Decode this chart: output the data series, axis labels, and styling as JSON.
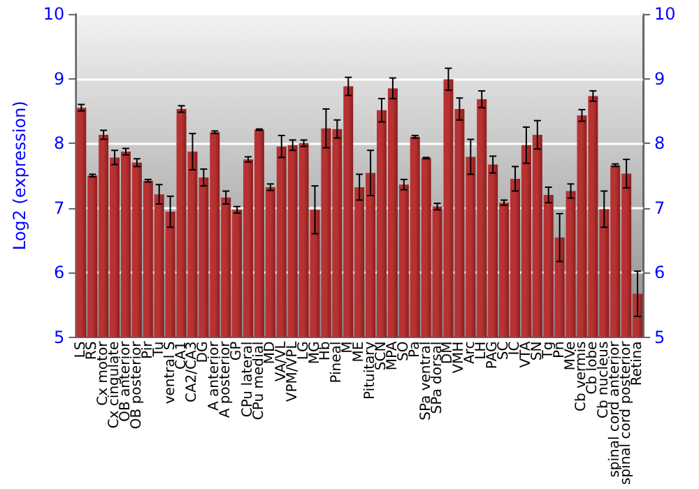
{
  "chart_data": {
    "type": "bar",
    "ylabel": "Log2 (expression)",
    "categories": [
      "LS",
      "RS",
      "Cx motor",
      "Cx cingulate",
      "OB anterior",
      "OB posterior",
      "Pir",
      "Tu",
      "ventral S",
      "CA1",
      "CA2/CA3",
      "DG",
      "A anterior",
      "A posterior",
      "GP",
      "CPu lateral",
      "CPu medial",
      "MD",
      "VA/VL",
      "VPM/VPL",
      "LG",
      "MG",
      "Hb",
      "Pineal",
      "M",
      "ME",
      "Pituitary",
      "SCN",
      "MPA",
      "SO",
      "Pa",
      "SPa ventral",
      "SPa dorsal",
      "DM",
      "VMH",
      "Arc",
      "LH",
      "PAG",
      "SC",
      "IC",
      "VTA",
      "SN",
      "Tg",
      "Pn",
      "MVe",
      "Cb vermis",
      "Cb lobe",
      "Cb nucleus",
      "spinal cord anterior",
      "spinal cord posterior",
      "Retina"
    ],
    "values": [
      8.55,
      7.5,
      8.13,
      7.78,
      7.87,
      7.7,
      7.42,
      7.21,
      6.94,
      8.53,
      7.87,
      7.47,
      8.17,
      7.16,
      6.97,
      7.75,
      8.21,
      7.32,
      7.95,
      7.97,
      8.0,
      6.97,
      8.23,
      8.22,
      8.88,
      7.32,
      7.54,
      8.51,
      8.85,
      7.36,
      8.1,
      7.77,
      7.02,
      8.99,
      8.53,
      7.79,
      8.68,
      7.67,
      7.08,
      7.45,
      7.97,
      8.13,
      7.2,
      6.54,
      7.26,
      8.43,
      8.73,
      6.98,
      7.66,
      7.53,
      5.67
    ],
    "errors": [
      0.05,
      0.02,
      0.07,
      0.11,
      0.05,
      0.06,
      0.02,
      0.15,
      0.24,
      0.05,
      0.28,
      0.13,
      0.02,
      0.1,
      0.05,
      0.04,
      0.01,
      0.05,
      0.17,
      0.08,
      0.05,
      0.37,
      0.3,
      0.14,
      0.14,
      0.2,
      0.35,
      0.18,
      0.16,
      0.08,
      0.02,
      0.01,
      0.05,
      0.17,
      0.17,
      0.27,
      0.13,
      0.13,
      0.04,
      0.19,
      0.28,
      0.22,
      0.12,
      0.37,
      0.11,
      0.09,
      0.08,
      0.28,
      0.02,
      0.22,
      0.35
    ],
    "color": "#b83232",
    "ylim": [
      5,
      10
    ],
    "yticks": [
      5,
      6,
      7,
      8,
      9,
      10
    ],
    "y2lim": [
      5,
      10
    ],
    "y2ticks": [
      5,
      6,
      7,
      8,
      9,
      10
    ],
    "grid": "y"
  }
}
